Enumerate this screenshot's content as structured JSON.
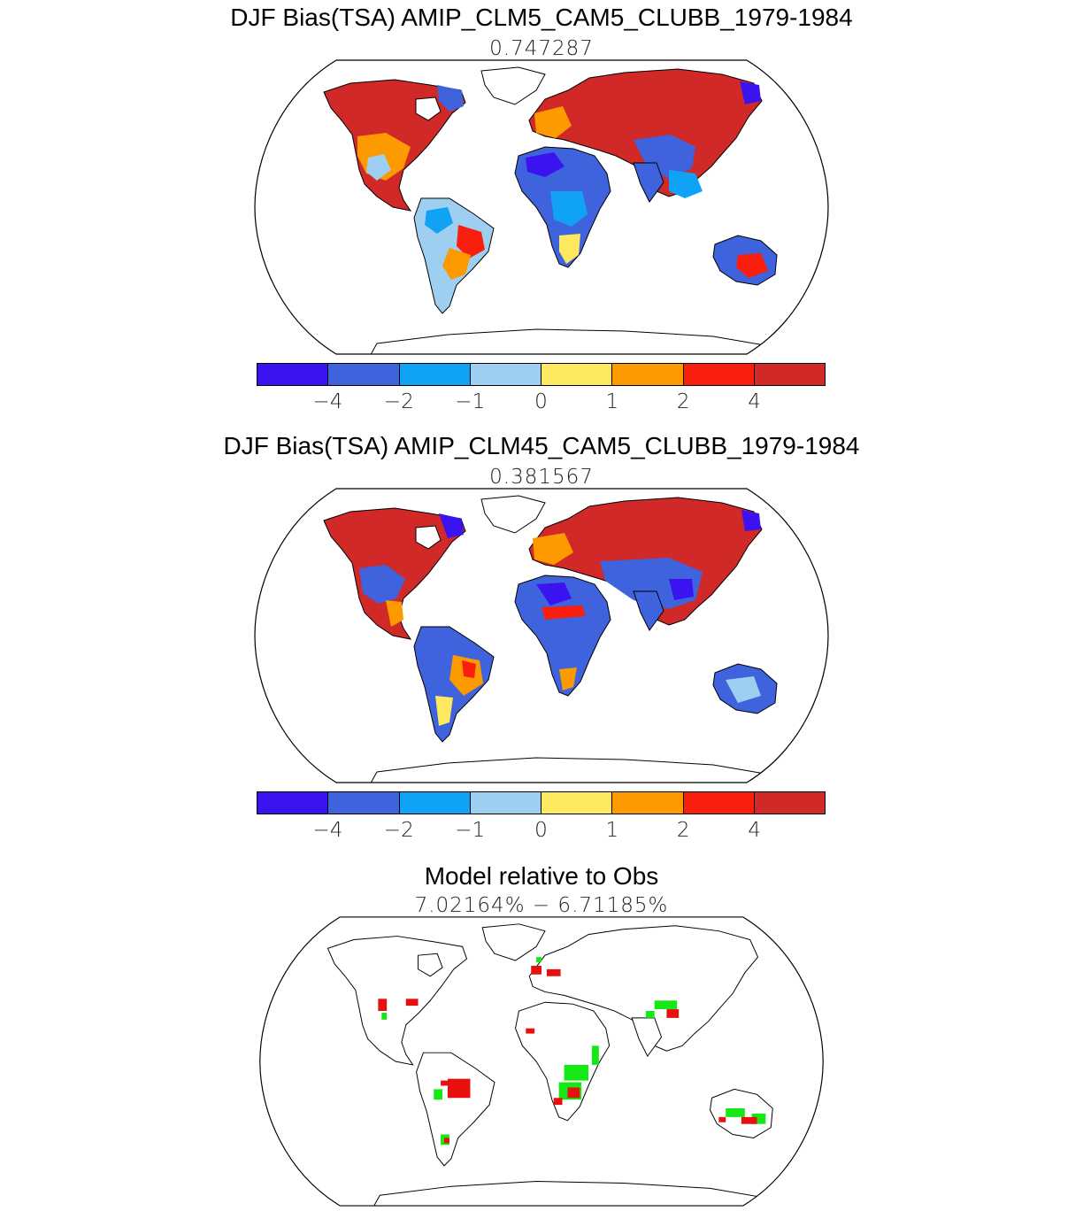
{
  "colors": {
    "scale": [
      "#3b12f0",
      "#3f63dd",
      "#0fa2f5",
      "#9ecff0",
      "#fde85f",
      "#fd9a00",
      "#f81f0f",
      "#d12828"
    ],
    "better": "#16e816",
    "worse": "#e80f0f",
    "ocean": "#ffffff",
    "coast": "#000000"
  },
  "panels": [
    {
      "title": "DJF Bias(TSA) AMIP_CLM5_CAM5_CLUBB_1979-1984",
      "subtitle": "0.747287",
      "legend": [
        "−4",
        "−2",
        "−1",
        "0",
        "1",
        "2",
        "4"
      ]
    },
    {
      "title": "DJF Bias(TSA) AMIP_CLM45_CAM5_CLUBB_1979-1984",
      "subtitle": "0.381567",
      "legend": [
        "−4",
        "−2",
        "−1",
        "0",
        "1",
        "2",
        "4"
      ]
    },
    {
      "title": "Model relative to Obs",
      "subtitle": "7.02164% − 6.71185%"
    }
  ]
}
